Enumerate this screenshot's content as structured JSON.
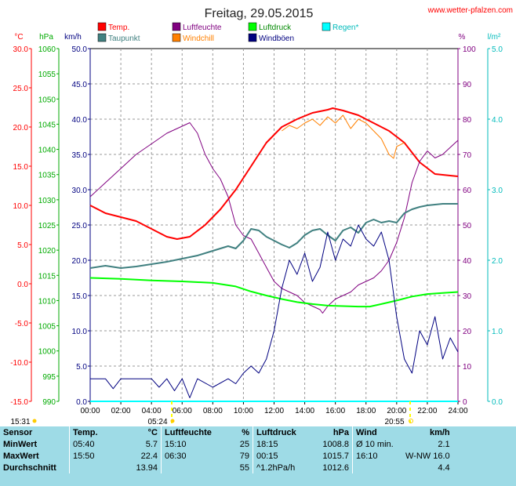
{
  "header": {
    "title": "Freitag, 29.05.2015",
    "source": "www.wetter-pfalzen.com"
  },
  "legend": [
    {
      "label": "Temp.",
      "color": "#ff0000"
    },
    {
      "label": "Luftfeuchte",
      "color": "#800080"
    },
    {
      "label": "Luftdruck",
      "color": "#00ff00"
    },
    {
      "label": "Regen*",
      "color": "#00ffff"
    },
    {
      "label": "Taupunkt",
      "color": "#408080"
    },
    {
      "label": "Windchill",
      "color": "#ff8000"
    },
    {
      "label": "Windböen",
      "color": "#000080"
    }
  ],
  "axis_units": {
    "temp": "°C",
    "pressure": "hPa",
    "wind": "km/h",
    "humidity": "%",
    "rain": "l/m²"
  },
  "sun": {
    "sunrise_label": "05:24",
    "sunset_label": "20:55",
    "moon_left": "15:31"
  },
  "chart_data": {
    "type": "line",
    "x_ticks": [
      "00:00",
      "02:00",
      "04:00",
      "06:00",
      "08:00",
      "10:00",
      "12:00",
      "14:00",
      "16:00",
      "18:00",
      "20:00",
      "22:00",
      "24:00"
    ],
    "xlim": [
      0,
      24
    ],
    "axes": {
      "temp": {
        "ylim": [
          -15,
          30
        ],
        "ticks": [
          "30.0",
          "25.0",
          "20.0",
          "15.0",
          "10.0",
          "5.0",
          "0.0",
          "-5.0",
          "-10.0",
          "-15.0"
        ]
      },
      "pressure": {
        "ylim": [
          990,
          1060
        ],
        "ticks": [
          "1060",
          "1055",
          "1050",
          "1045",
          "1040",
          "1035",
          "1030",
          "1025",
          "1020",
          "1015",
          "1010",
          "1005",
          "1000",
          "995",
          "990"
        ]
      },
      "wind": {
        "ylim": [
          0,
          50
        ],
        "ticks": [
          "50.0",
          "45.0",
          "40.0",
          "35.0",
          "30.0",
          "25.0",
          "20.0",
          "15.0",
          "10.0",
          "5.0",
          "0.0"
        ]
      },
      "humidity": {
        "ylim": [
          0,
          100
        ],
        "ticks": [
          "100",
          "90",
          "80",
          "70",
          "60",
          "50",
          "40",
          "30",
          "20",
          "10",
          "0"
        ]
      },
      "rain": {
        "ylim": [
          0,
          5
        ],
        "ticks": [
          "5.0",
          "4.0",
          "3.0",
          "2.0",
          "1.0",
          "0.0"
        ]
      }
    },
    "series": [
      {
        "name": "Temp.",
        "axis": "temp",
        "color": "#ff0000",
        "width": 2,
        "points": [
          [
            0,
            10.0
          ],
          [
            1,
            9.0
          ],
          [
            2,
            8.5
          ],
          [
            3,
            8.0
          ],
          [
            4,
            7.0
          ],
          [
            5,
            6.0
          ],
          [
            5.67,
            5.7
          ],
          [
            6.5,
            6.0
          ],
          [
            7.5,
            7.5
          ],
          [
            8.5,
            9.5
          ],
          [
            9.5,
            12.0
          ],
          [
            10.5,
            15.0
          ],
          [
            11.5,
            18.0
          ],
          [
            12.5,
            20.0
          ],
          [
            13.5,
            21.0
          ],
          [
            14.5,
            21.8
          ],
          [
            15.5,
            22.2
          ],
          [
            15.83,
            22.4
          ],
          [
            16.5,
            22.1
          ],
          [
            17.5,
            21.5
          ],
          [
            18.5,
            20.5
          ],
          [
            19.5,
            19.5
          ],
          [
            20.5,
            18.0
          ],
          [
            21.5,
            15.5
          ],
          [
            22.5,
            14.0
          ],
          [
            23.5,
            13.8
          ],
          [
            24,
            13.7
          ]
        ]
      },
      {
        "name": "Luftfeuchte",
        "axis": "humidity",
        "color": "#800080",
        "width": 1,
        "points": [
          [
            0,
            58
          ],
          [
            1,
            62
          ],
          [
            2,
            66
          ],
          [
            3,
            70
          ],
          [
            4,
            73
          ],
          [
            5,
            76
          ],
          [
            6,
            78
          ],
          [
            6.5,
            79
          ],
          [
            7,
            76
          ],
          [
            7.5,
            70
          ],
          [
            8,
            66
          ],
          [
            8.5,
            63
          ],
          [
            9,
            58
          ],
          [
            9.5,
            50
          ],
          [
            10,
            47
          ],
          [
            10.5,
            46
          ],
          [
            11,
            42
          ],
          [
            11.5,
            38
          ],
          [
            12,
            34
          ],
          [
            12.5,
            32
          ],
          [
            13,
            31
          ],
          [
            13.5,
            30
          ],
          [
            14,
            28
          ],
          [
            14.5,
            27
          ],
          [
            15,
            26
          ],
          [
            15.17,
            25
          ],
          [
            15.5,
            27
          ],
          [
            16,
            29
          ],
          [
            16.5,
            30
          ],
          [
            17,
            31
          ],
          [
            17.5,
            33
          ],
          [
            18,
            34
          ],
          [
            18.5,
            35
          ],
          [
            19,
            37
          ],
          [
            19.5,
            40
          ],
          [
            20,
            45
          ],
          [
            20.5,
            52
          ],
          [
            21,
            62
          ],
          [
            21.5,
            68
          ],
          [
            22,
            71
          ],
          [
            22.5,
            69
          ],
          [
            23,
            70
          ],
          [
            23.5,
            72
          ],
          [
            24,
            74
          ]
        ]
      },
      {
        "name": "Luftdruck",
        "axis": "pressure",
        "color": "#00ff00",
        "width": 2,
        "points": [
          [
            0,
            1014.5
          ],
          [
            2,
            1014.3
          ],
          [
            4,
            1014.0
          ],
          [
            6,
            1013.8
          ],
          [
            8,
            1013.5
          ],
          [
            9.5,
            1012.8
          ],
          [
            10.5,
            1011.8
          ],
          [
            11.5,
            1011.0
          ],
          [
            12.5,
            1010.3
          ],
          [
            13.5,
            1009.7
          ],
          [
            14.5,
            1009.3
          ],
          [
            15.5,
            1009.0
          ],
          [
            16.5,
            1008.9
          ],
          [
            17.5,
            1008.8
          ],
          [
            18.25,
            1008.8
          ],
          [
            19,
            1009.3
          ],
          [
            20,
            1010.0
          ],
          [
            21,
            1010.8
          ],
          [
            22,
            1011.3
          ],
          [
            23,
            1011.5
          ],
          [
            24,
            1011.7
          ]
        ]
      },
      {
        "name": "Taupunkt",
        "axis": "temp",
        "color": "#408080",
        "width": 2,
        "points": [
          [
            0,
            2.0
          ],
          [
            1,
            2.3
          ],
          [
            2,
            2.0
          ],
          [
            3,
            2.2
          ],
          [
            4,
            2.5
          ],
          [
            5,
            2.8
          ],
          [
            6,
            3.2
          ],
          [
            7,
            3.6
          ],
          [
            8,
            4.2
          ],
          [
            9,
            4.8
          ],
          [
            9.5,
            4.5
          ],
          [
            10,
            5.5
          ],
          [
            10.5,
            7.0
          ],
          [
            11,
            6.8
          ],
          [
            11.5,
            6.0
          ],
          [
            12,
            5.5
          ],
          [
            12.5,
            5.0
          ],
          [
            13,
            4.6
          ],
          [
            13.5,
            5.2
          ],
          [
            14,
            6.2
          ],
          [
            14.5,
            6.8
          ],
          [
            15,
            7.0
          ],
          [
            15.5,
            6.2
          ],
          [
            16,
            5.5
          ],
          [
            16.5,
            6.8
          ],
          [
            17,
            7.2
          ],
          [
            17.5,
            6.5
          ],
          [
            18,
            7.8
          ],
          [
            18.5,
            8.2
          ],
          [
            19,
            7.8
          ],
          [
            19.5,
            8.0
          ],
          [
            20,
            7.8
          ],
          [
            20.5,
            9.0
          ],
          [
            21,
            9.5
          ],
          [
            21.5,
            9.8
          ],
          [
            22,
            10.0
          ],
          [
            23,
            10.2
          ],
          [
            24,
            10.2
          ]
        ]
      },
      {
        "name": "Windchill",
        "axis": "temp",
        "color": "#ff8000",
        "width": 1,
        "points": [
          [
            12.5,
            19.5
          ],
          [
            13,
            20.2
          ],
          [
            13.5,
            19.8
          ],
          [
            14,
            20.5
          ],
          [
            14.5,
            21.0
          ],
          [
            15,
            20.2
          ],
          [
            15.5,
            21.3
          ],
          [
            16,
            20.5
          ],
          [
            16.5,
            21.5
          ],
          [
            17,
            19.8
          ],
          [
            17.5,
            21.0
          ],
          [
            18,
            20.5
          ],
          [
            18.5,
            19.5
          ],
          [
            19,
            18.5
          ],
          [
            19.5,
            16.5
          ],
          [
            19.8,
            16.0
          ],
          [
            20,
            17.5
          ],
          [
            20.5,
            18.0
          ]
        ]
      },
      {
        "name": "Windböen",
        "axis": "wind",
        "color": "#000080",
        "width": 1,
        "points": [
          [
            0,
            3.2
          ],
          [
            1,
            3.2
          ],
          [
            1.5,
            1.8
          ],
          [
            2,
            3.2
          ],
          [
            4,
            3.2
          ],
          [
            4.5,
            2.0
          ],
          [
            5,
            3.2
          ],
          [
            5.5,
            1.5
          ],
          [
            6,
            3.2
          ],
          [
            6.5,
            0.5
          ],
          [
            7,
            3.2
          ],
          [
            8,
            2.0
          ],
          [
            9,
            3.2
          ],
          [
            9.5,
            2.5
          ],
          [
            10,
            4.0
          ],
          [
            10.5,
            5.0
          ],
          [
            11,
            4.0
          ],
          [
            11.5,
            6.0
          ],
          [
            12,
            10.0
          ],
          [
            12.5,
            16.0
          ],
          [
            13,
            20.0
          ],
          [
            13.5,
            18.0
          ],
          [
            14,
            21.0
          ],
          [
            14.5,
            17.0
          ],
          [
            15,
            19.0
          ],
          [
            15.5,
            24.0
          ],
          [
            16,
            20.0
          ],
          [
            16.5,
            23.0
          ],
          [
            17,
            22.0
          ],
          [
            17.5,
            25.0
          ],
          [
            18,
            23.0
          ],
          [
            18.5,
            22.0
          ],
          [
            19,
            24.0
          ],
          [
            19.5,
            20.0
          ],
          [
            20,
            12.0
          ],
          [
            20.5,
            6.0
          ],
          [
            21,
            4.0
          ],
          [
            21.5,
            10.0
          ],
          [
            22,
            8.0
          ],
          [
            22.5,
            12.0
          ],
          [
            23,
            6.0
          ],
          [
            23.5,
            9.0
          ],
          [
            24,
            7.0
          ]
        ]
      },
      {
        "name": "Regen*",
        "axis": "rain",
        "color": "#00ffff",
        "width": 2,
        "points": [
          [
            0,
            0
          ],
          [
            24,
            0
          ]
        ]
      }
    ]
  },
  "stats": {
    "headers": {
      "sensor": "Sensor",
      "temp": "Temp.",
      "temp_unit": "°C",
      "hum": "Luftfeuchte",
      "hum_unit": "%",
      "press": "Luftdruck",
      "press_unit": "hPa",
      "wind": "Wind",
      "wind_unit": "km/h"
    },
    "rows": [
      {
        "label": "MinWert",
        "t_time": "05:40",
        "t_val": "5.7",
        "h_time": "15:10",
        "h_val": "25",
        "p_time": "18:15",
        "p_val": "1008.8",
        "w_time": "Ø 10 min.",
        "w_val": "2.1"
      },
      {
        "label": "MaxWert",
        "t_time": "15:50",
        "t_val": "22.4",
        "h_time": "06:30",
        "h_val": "79",
        "p_time": "00:15",
        "p_val": "1015.7",
        "w_time": "16:10",
        "w_val": "W-NW 16.0"
      },
      {
        "label": "Durchschnitt",
        "t_time": "",
        "t_val": "13.94",
        "h_time": "",
        "h_val": "55",
        "p_time": "^1.2hPa/h",
        "p_val": "1012.6",
        "w_time": "",
        "w_val": "4.4"
      }
    ]
  }
}
